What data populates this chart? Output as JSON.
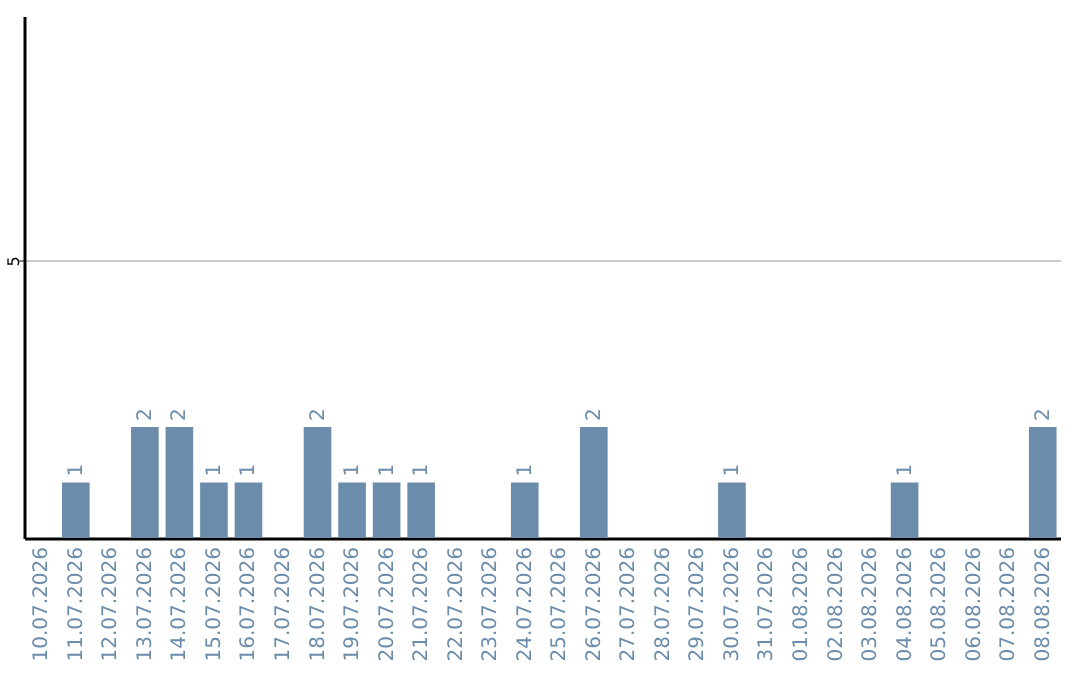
{
  "chart_data": {
    "type": "bar",
    "categories": [
      "10.07.2026",
      "11.07.2026",
      "12.07.2026",
      "13.07.2026",
      "14.07.2026",
      "15.07.2026",
      "16.07.2026",
      "17.07.2026",
      "18.07.2026",
      "19.07.2026",
      "20.07.2026",
      "21.07.2026",
      "22.07.2026",
      "23.07.2026",
      "24.07.2026",
      "25.07.2026",
      "26.07.2026",
      "27.07.2026",
      "28.07.2026",
      "29.07.2026",
      "30.07.2026",
      "31.07.2026",
      "01.08.2026",
      "02.08.2026",
      "03.08.2026",
      "04.08.2026",
      "05.08.2026",
      "06.08.2026",
      "07.08.2026",
      "08.08.2026"
    ],
    "values": [
      0,
      1,
      0,
      2,
      2,
      1,
      1,
      0,
      2,
      1,
      1,
      1,
      0,
      0,
      1,
      0,
      2,
      0,
      0,
      0,
      1,
      0,
      0,
      0,
      0,
      1,
      0,
      0,
      0,
      2
    ],
    "value_labels": [
      null,
      "1",
      null,
      "2",
      "2",
      "1",
      "1",
      null,
      "2",
      "1",
      "1",
      "1",
      null,
      null,
      "1",
      null,
      "2",
      null,
      null,
      null,
      "1",
      null,
      null,
      null,
      null,
      "1",
      null,
      null,
      null,
      "2"
    ],
    "color": "#6b8cab",
    "ylim": [
      0,
      9.4
    ],
    "yticks": [
      5
    ],
    "grid": "y"
  }
}
